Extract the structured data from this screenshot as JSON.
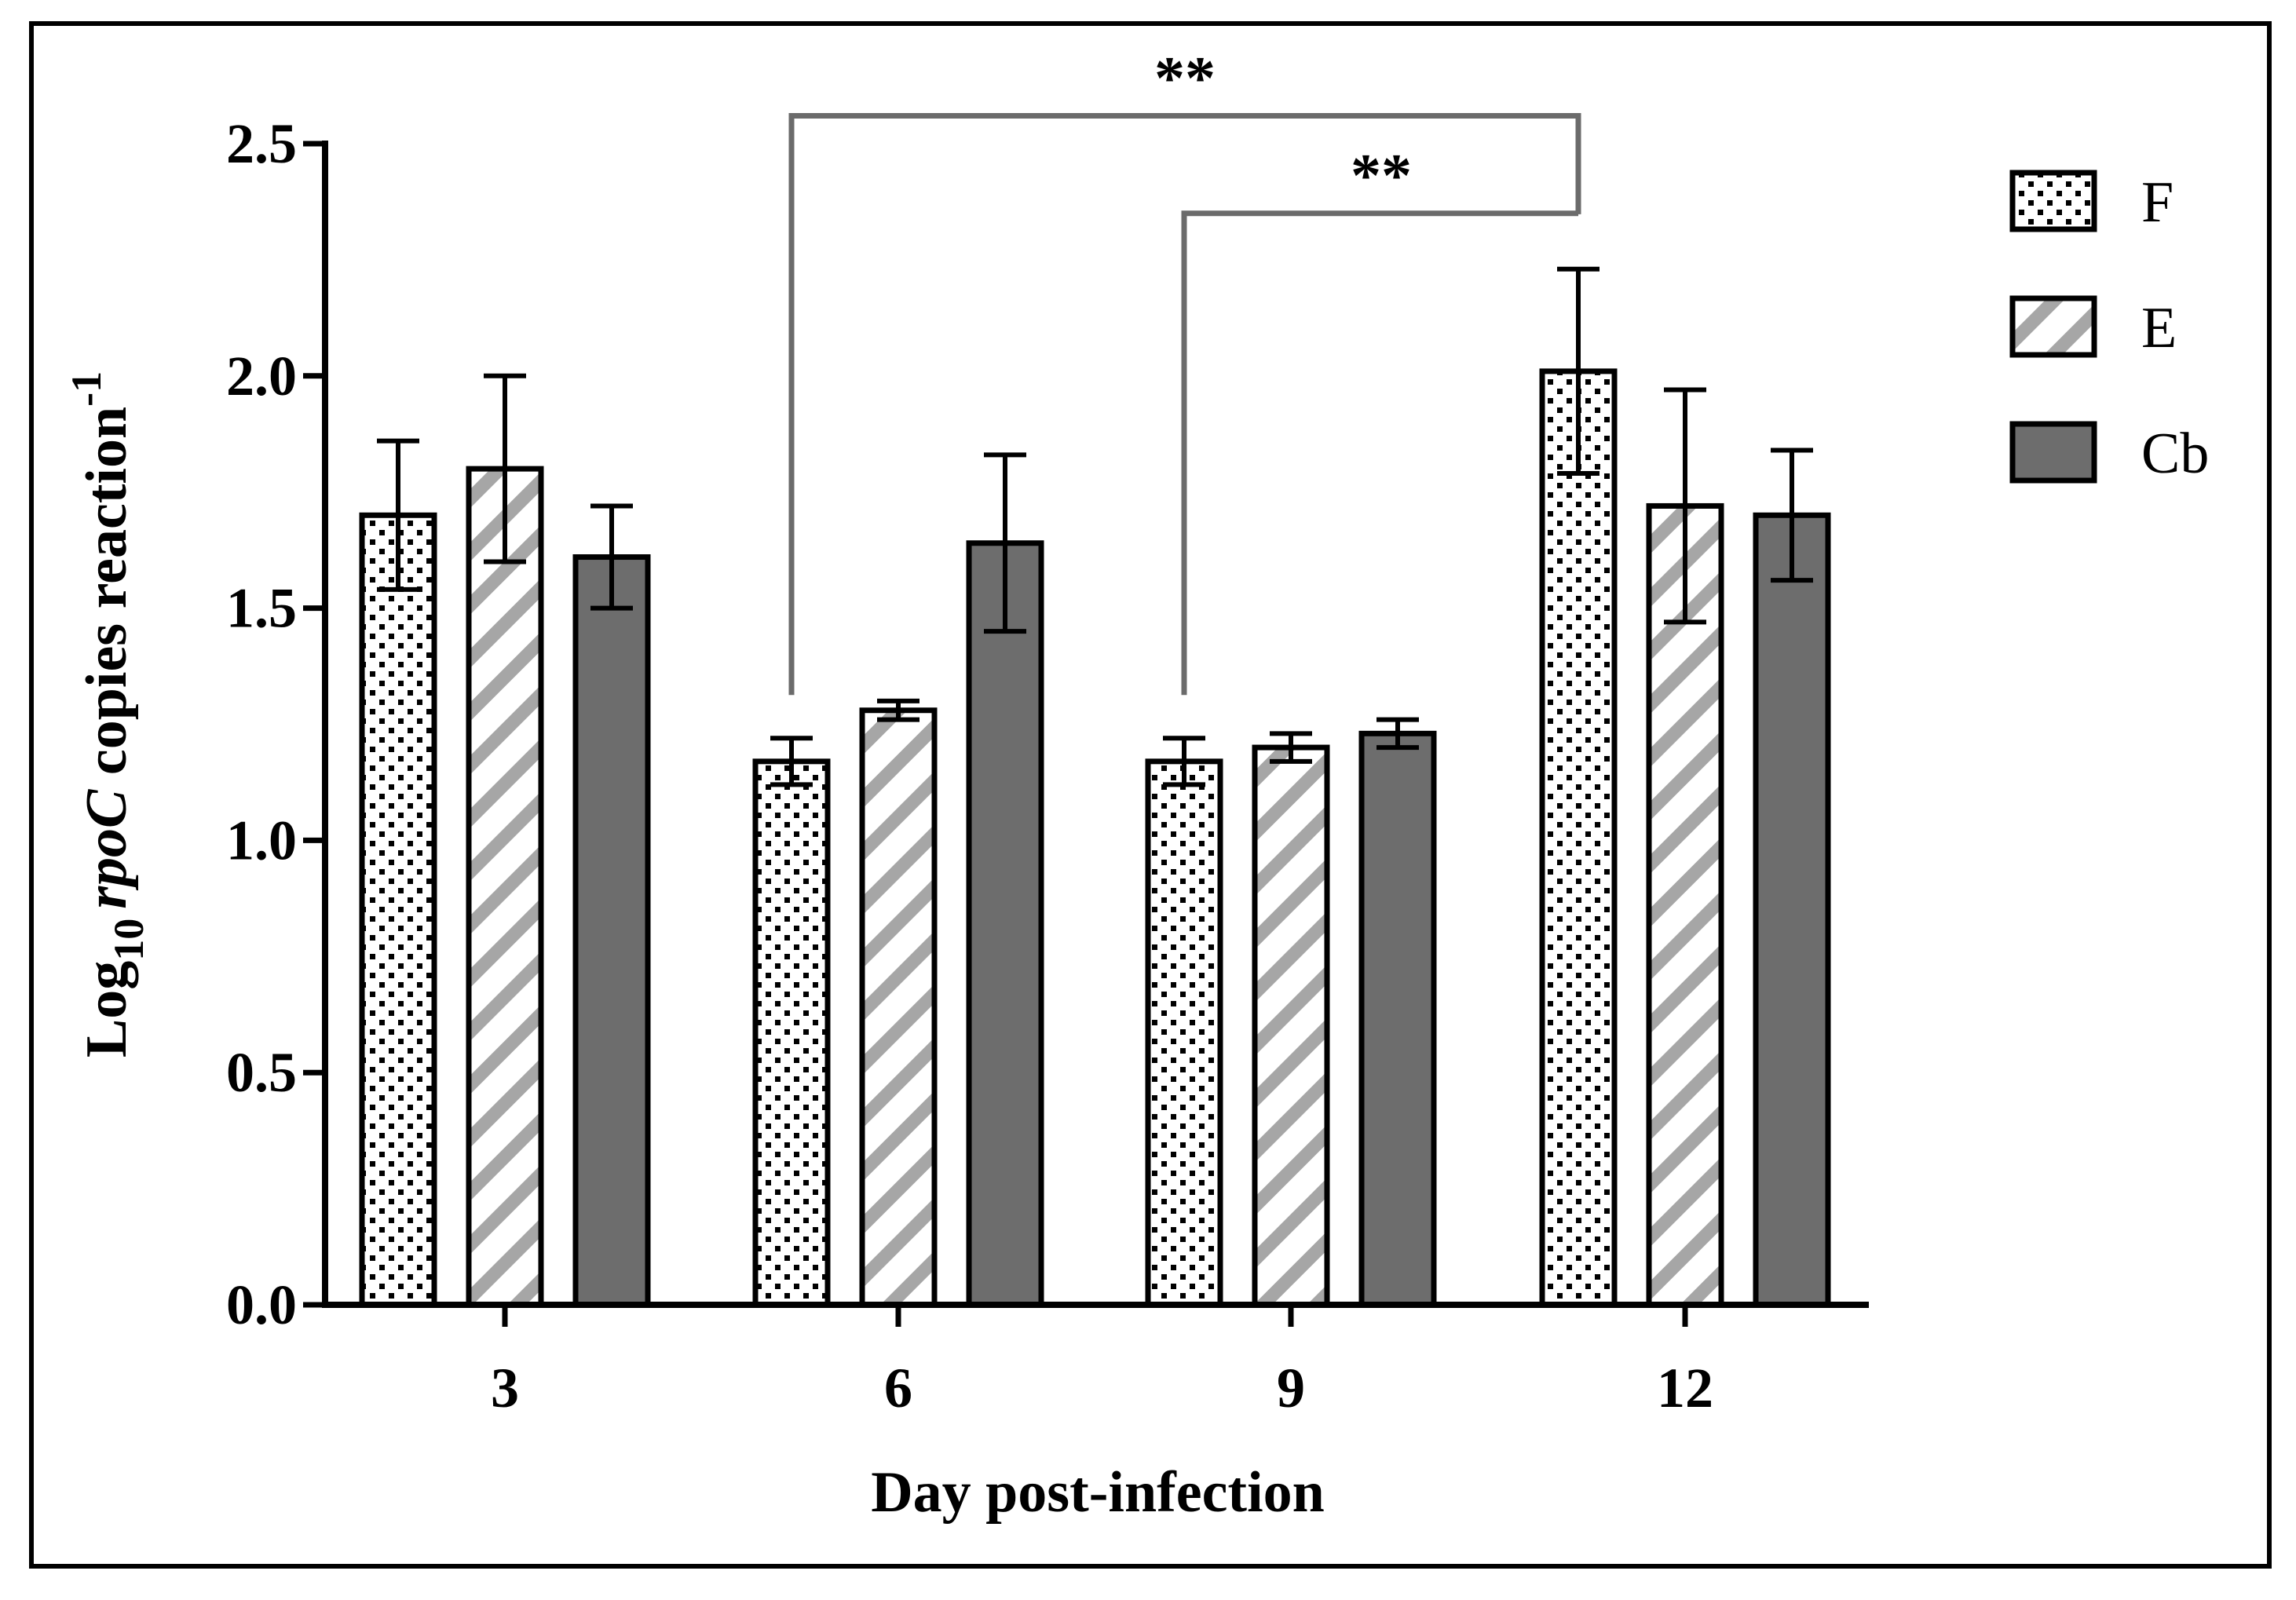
{
  "chart_data": {
    "type": "bar",
    "xlabel": "Day post-infection",
    "ylabel": {
      "prefix": "Log",
      "prefix_sub": "10",
      "gene": "rpoC",
      "suffix": " copies reaction",
      "suffix_sup": "-1"
    },
    "ylim": [
      0,
      2.5
    ],
    "yticks": [
      {
        "value": 0.0,
        "label": "0.0"
      },
      {
        "value": 0.5,
        "label": "0.5"
      },
      {
        "value": 1.0,
        "label": "1.0"
      },
      {
        "value": 1.5,
        "label": "1.5"
      },
      {
        "value": 2.0,
        "label": "2.0"
      },
      {
        "value": 2.5,
        "label": "2.5"
      }
    ],
    "categories": [
      "3",
      "6",
      "9",
      "12"
    ],
    "series": [
      {
        "name": "F",
        "pattern": "dots",
        "values": [
          1.7,
          1.17,
          1.17,
          2.01
        ],
        "errors": [
          0.16,
          0.05,
          0.05,
          0.22
        ]
      },
      {
        "name": "E",
        "pattern": "stripes",
        "values": [
          1.8,
          1.28,
          1.2,
          1.72
        ],
        "errors": [
          0.2,
          0.02,
          0.03,
          0.25
        ]
      },
      {
        "name": "Cb",
        "pattern": "solid",
        "values": [
          1.61,
          1.64,
          1.23,
          1.7
        ],
        "errors": [
          0.11,
          0.19,
          0.03,
          0.14
        ]
      }
    ],
    "significance": [
      {
        "label": "**",
        "from": {
          "category": 1,
          "series": 0
        },
        "to": {
          "category": 3,
          "series": 0
        },
        "level": 2.56
      },
      {
        "label": "**",
        "from": {
          "category": 2,
          "series": 0
        },
        "to": {
          "category": 3,
          "series": 0
        },
        "level": 2.35
      }
    ],
    "legend_position": "top-right"
  },
  "colors": {
    "axis": "#000000",
    "bar_outline": "#000000",
    "dots": "#000000",
    "stripe": "#a6a6a6",
    "solid": "#6d6d6d",
    "bracket": "#6b6b6b",
    "frame": "#000000"
  }
}
